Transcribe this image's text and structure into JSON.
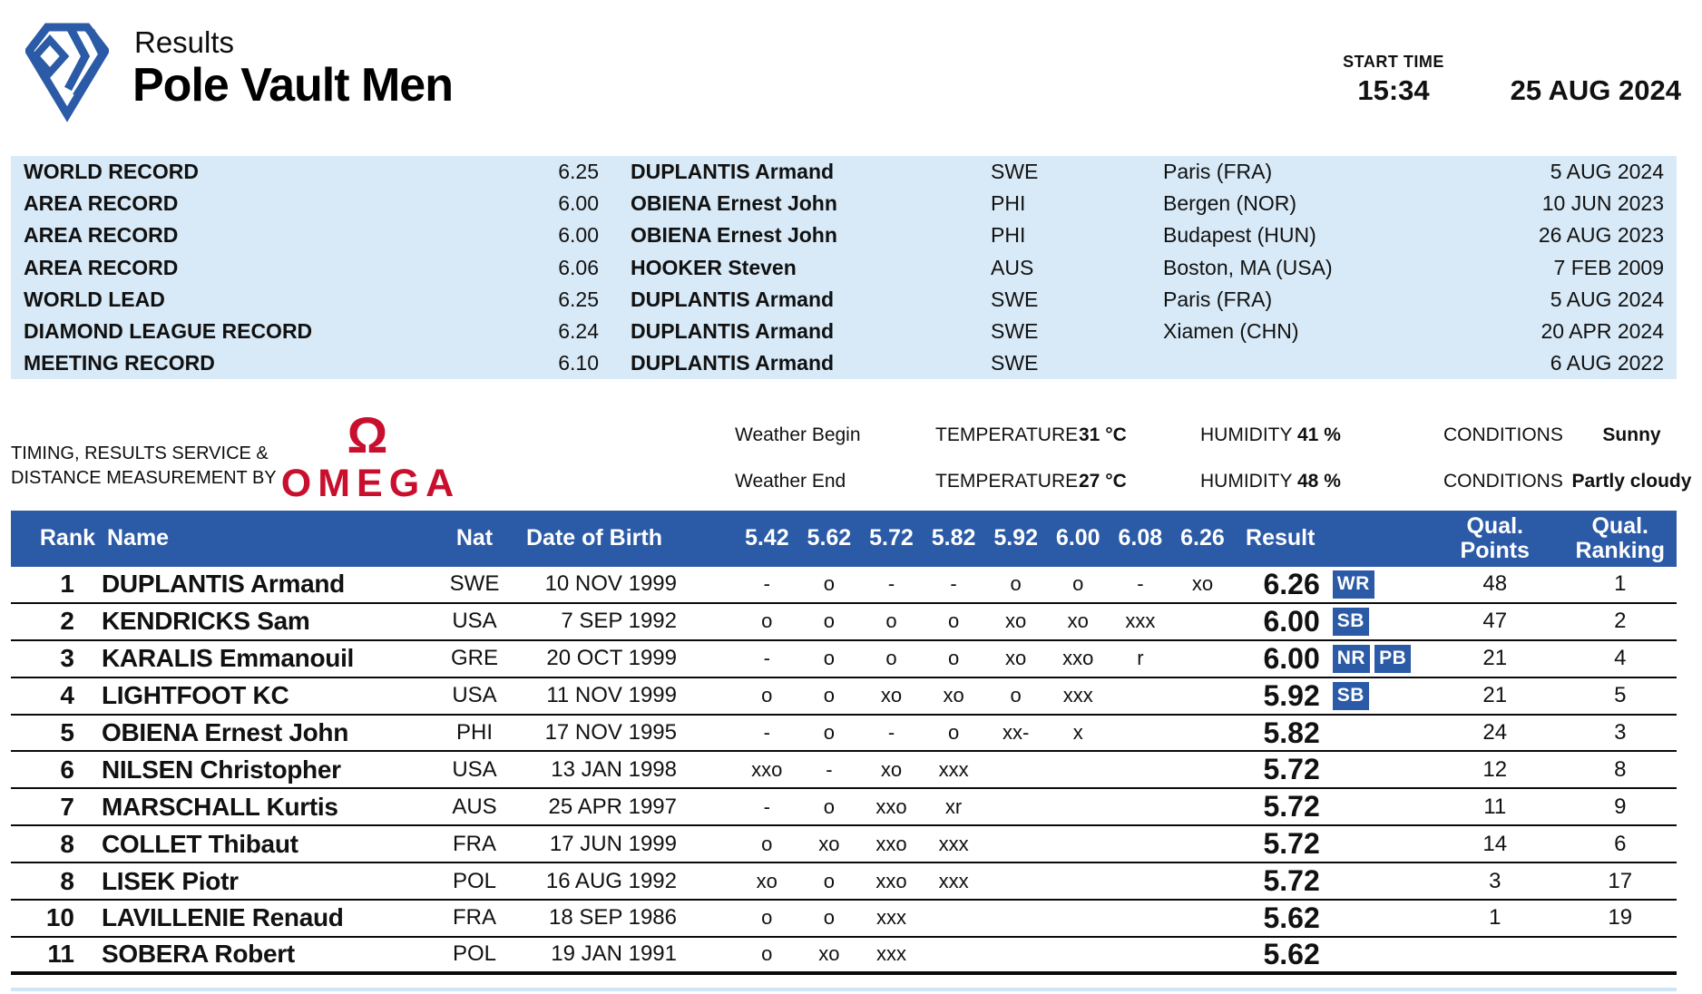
{
  "colors": {
    "brand_blue": "#2b5aa6",
    "records_bg": "#d8eaf7",
    "omega_red": "#c8102e"
  },
  "header": {
    "kicker": "Results",
    "title": "Pole Vault Men",
    "start_time_label": "START TIME",
    "start_time": "15:34",
    "date": "25 AUG 2024",
    "logo": "diamond-league-logo"
  },
  "records": [
    {
      "label": "WORLD RECORD",
      "mark": "6.25",
      "athlete": "DUPLANTIS Armand",
      "nat": "SWE",
      "venue": "Paris (FRA)",
      "date": "5 AUG 2024"
    },
    {
      "label": "AREA RECORD",
      "mark": "6.00",
      "athlete": "OBIENA Ernest John",
      "nat": "PHI",
      "venue": "Bergen (NOR)",
      "date": "10 JUN 2023"
    },
    {
      "label": "AREA RECORD",
      "mark": "6.00",
      "athlete": "OBIENA Ernest John",
      "nat": "PHI",
      "venue": "Budapest (HUN)",
      "date": "26 AUG 2023"
    },
    {
      "label": "AREA RECORD",
      "mark": "6.06",
      "athlete": "HOOKER Steven",
      "nat": "AUS",
      "venue": "Boston, MA (USA)",
      "date": "7 FEB 2009"
    },
    {
      "label": "WORLD LEAD",
      "mark": "6.25",
      "athlete": "DUPLANTIS Armand",
      "nat": "SWE",
      "venue": "Paris (FRA)",
      "date": "5 AUG 2024"
    },
    {
      "label": "DIAMOND LEAGUE RECORD",
      "mark": "6.24",
      "athlete": "DUPLANTIS Armand",
      "nat": "SWE",
      "venue": "Xiamen (CHN)",
      "date": "20 APR 2024"
    },
    {
      "label": "MEETING RECORD",
      "mark": "6.10",
      "athlete": "DUPLANTIS Armand",
      "nat": "SWE",
      "venue": "",
      "date": "6 AUG 2022"
    }
  ],
  "service": {
    "line1": "TIMING, RESULTS SERVICE &",
    "line2": "DISTANCE MEASUREMENT BY",
    "brand_symbol": "Ω",
    "brand_name": "OMEGA"
  },
  "weather": [
    {
      "label": "Weather Begin",
      "temperature_label": "TEMPERATURE",
      "temperature": "31 °C",
      "humidity_label": "HUMIDITY",
      "humidity": "41 %",
      "conditions_label": "CONDITIONS",
      "conditions": "Sunny"
    },
    {
      "label": "Weather End",
      "temperature_label": "TEMPERATURE",
      "temperature": "27 °C",
      "humidity_label": "HUMIDITY",
      "humidity": "48 %",
      "conditions_label": "CONDITIONS",
      "conditions": "Partly cloudy"
    }
  ],
  "results": {
    "headers": {
      "rank": "Rank",
      "name": "Name",
      "nat": "Nat",
      "dob": "Date of Birth",
      "result": "Result",
      "qual_points_line1": "Qual.",
      "qual_points_line2": "Points",
      "qual_ranking_line1": "Qual.",
      "qual_ranking_line2": "Ranking"
    },
    "heights": [
      "5.42",
      "5.62",
      "5.72",
      "5.82",
      "5.92",
      "6.00",
      "6.08",
      "6.26"
    ],
    "rows": [
      {
        "rank": "1",
        "name": "DUPLANTIS Armand",
        "nat": "SWE",
        "dob": "10 NOV 1999",
        "attempts": [
          "-",
          "o",
          "-",
          "-",
          "o",
          "o",
          "-",
          "xo"
        ],
        "result": "6.26",
        "badges": [
          "WR"
        ],
        "qual_points": "48",
        "qual_ranking": "1"
      },
      {
        "rank": "2",
        "name": "KENDRICKS Sam",
        "nat": "USA",
        "dob": "7 SEP 1992",
        "attempts": [
          "o",
          "o",
          "o",
          "o",
          "xo",
          "xo",
          "xxx",
          ""
        ],
        "result": "6.00",
        "badges": [
          "SB"
        ],
        "qual_points": "47",
        "qual_ranking": "2"
      },
      {
        "rank": "3",
        "name": "KARALIS Emmanouil",
        "nat": "GRE",
        "dob": "20 OCT 1999",
        "attempts": [
          "-",
          "o",
          "o",
          "o",
          "xo",
          "xxo",
          "r",
          ""
        ],
        "result": "6.00",
        "badges": [
          "NR",
          "PB"
        ],
        "qual_points": "21",
        "qual_ranking": "4"
      },
      {
        "rank": "4",
        "name": "LIGHTFOOT KC",
        "nat": "USA",
        "dob": "11 NOV 1999",
        "attempts": [
          "o",
          "o",
          "xo",
          "xo",
          "o",
          "xxx",
          "",
          ""
        ],
        "result": "5.92",
        "badges": [
          "SB"
        ],
        "qual_points": "21",
        "qual_ranking": "5"
      },
      {
        "rank": "5",
        "name": "OBIENA Ernest John",
        "nat": "PHI",
        "dob": "17 NOV 1995",
        "attempts": [
          "-",
          "o",
          "-",
          "o",
          "xx-",
          "x",
          "",
          ""
        ],
        "result": "5.82",
        "badges": [],
        "qual_points": "24",
        "qual_ranking": "3"
      },
      {
        "rank": "6",
        "name": "NILSEN Christopher",
        "nat": "USA",
        "dob": "13 JAN 1998",
        "attempts": [
          "xxo",
          "-",
          "xo",
          "xxx",
          "",
          "",
          "",
          ""
        ],
        "result": "5.72",
        "badges": [],
        "qual_points": "12",
        "qual_ranking": "8"
      },
      {
        "rank": "7",
        "name": "MARSCHALL Kurtis",
        "nat": "AUS",
        "dob": "25 APR 1997",
        "attempts": [
          "-",
          "o",
          "xxo",
          "xr",
          "",
          "",
          "",
          ""
        ],
        "result": "5.72",
        "badges": [],
        "qual_points": "11",
        "qual_ranking": "9"
      },
      {
        "rank": "8",
        "name": "COLLET Thibaut",
        "nat": "FRA",
        "dob": "17 JUN 1999",
        "attempts": [
          "o",
          "xo",
          "xxo",
          "xxx",
          "",
          "",
          "",
          ""
        ],
        "result": "5.72",
        "badges": [],
        "qual_points": "14",
        "qual_ranking": "6"
      },
      {
        "rank": "8",
        "name": "LISEK Piotr",
        "nat": "POL",
        "dob": "16 AUG 1992",
        "attempts": [
          "xo",
          "o",
          "xxo",
          "xxx",
          "",
          "",
          "",
          ""
        ],
        "result": "5.72",
        "badges": [],
        "qual_points": "3",
        "qual_ranking": "17"
      },
      {
        "rank": "10",
        "name": "LAVILLENIE Renaud",
        "nat": "FRA",
        "dob": "18 SEP 1986",
        "attempts": [
          "o",
          "o",
          "xxx",
          "",
          "",
          "",
          "",
          ""
        ],
        "result": "5.62",
        "badges": [],
        "qual_points": "1",
        "qual_ranking": "19"
      },
      {
        "rank": "11",
        "name": "SOBERA Robert",
        "nat": "POL",
        "dob": "19 JAN 1991",
        "attempts": [
          "o",
          "xo",
          "xxx",
          "",
          "",
          "",
          "",
          ""
        ],
        "result": "5.62",
        "badges": [],
        "qual_points": "",
        "qual_ranking": ""
      }
    ]
  }
}
